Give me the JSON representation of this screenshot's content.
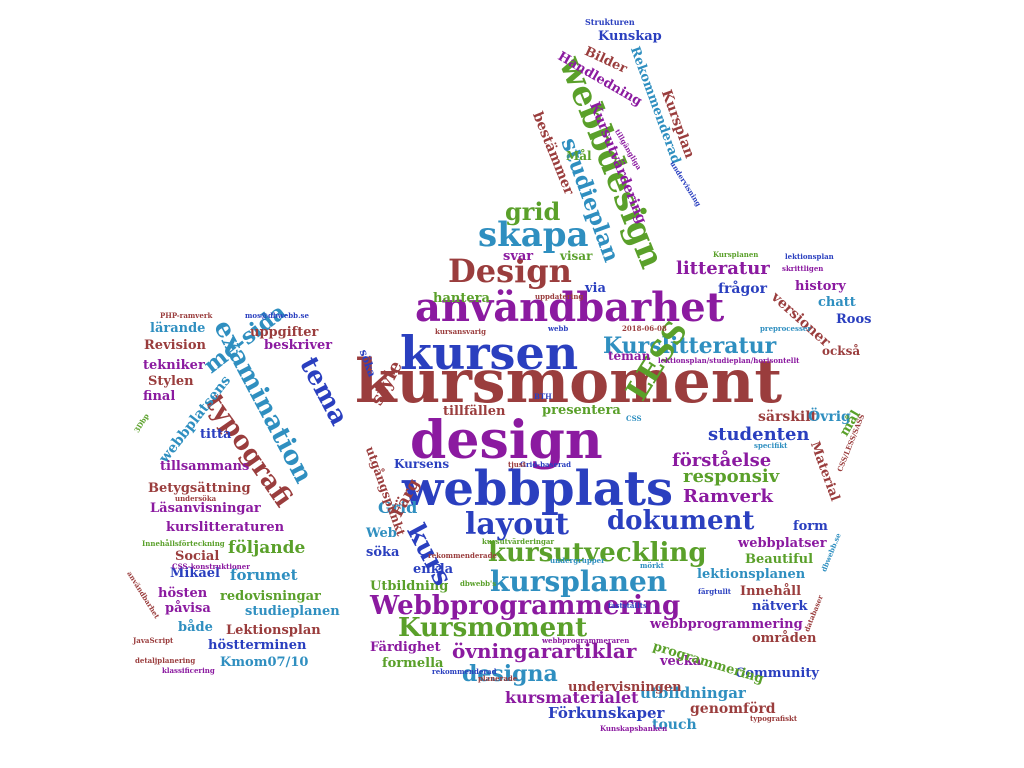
{
  "colors": {
    "blue": "#2a3fbf",
    "red": "#9a3d3d",
    "purple": "#8b1aa0",
    "green": "#5aa02a",
    "teal": "#2f8fc0"
  },
  "words": [
    "kursmoment",
    "design",
    "webbplats",
    "kursen",
    "användbarhet",
    "skapa",
    "Design",
    "grid",
    "layout",
    "dokument",
    "kursutveckling",
    "kursplanen",
    "Webbprogrammering",
    "Kursmoment",
    "övningarartiklar",
    "designa",
    "kursmaterialet",
    "Förkunskaper",
    "utbildningar",
    "genomförd",
    "touch",
    "Kurslitteratur",
    "studenten",
    "LESS",
    "förståelse",
    "responsiv",
    "Ramverk",
    "litteratur",
    "frågor",
    "versioner",
    "chatt",
    "Roos",
    "history",
    "också",
    "särskilt",
    "Övrig",
    "webbdesign",
    "studieplan",
    "Kursutvärdering",
    "Kunskap",
    "Rekommenderad",
    "Bilder",
    "Handledning",
    "Kursplan",
    "Mål",
    "bestämmer",
    "hantera",
    "via",
    "svar",
    "visar",
    "style",
    "tillfällen",
    "presentera",
    "teman",
    "söka",
    "Grid",
    "Web",
    "Färg",
    "söka",
    "enkla",
    "Utbildning",
    "Kursens",
    "kurs",
    "tema",
    "examination",
    "me-sida",
    "typografi",
    "webbplatsens",
    "uppgifter",
    "beskriver",
    "lärande",
    "Revision",
    "tekniker",
    "Stylen",
    "final",
    "titta",
    "tillsammans",
    "Betygsättning",
    "Läsanvisningar",
    "kurslitteraturen",
    "följande",
    "Social",
    "Mikael",
    "forumet",
    "hösten",
    "redovisningar",
    "påvisa",
    "studieplanen",
    "både",
    "Lektionsplan",
    "höstterminen",
    "Kmom07/10",
    "Färdighet",
    "formella",
    "vecka",
    "Community",
    "undervisningen",
    "programmering",
    "områden",
    "webbprogrammering",
    "nätverk",
    "Innehåll",
    "lektionsplanen",
    "webbplatser",
    "Beautiful",
    "form",
    "Material",
    "mål",
    "Strukturen",
    "PHP-ramverk",
    "mos@dbwebb.se",
    "Kursplanen",
    "lektionsplan",
    "skrittligen",
    "uppdatering",
    "kursansvarig",
    "webb",
    "2018-06-08",
    "lektionsplan/studieplan/horisontellt",
    "preprocesser",
    "undersöka",
    "Innehållsförteckning",
    "CSS-konstruktioner",
    "kursutvärderingar",
    "undergrupper",
    "rekommenderade",
    "mörkt",
    "färgtullt",
    "fastställts",
    "webbprogrammeraren",
    "planerade",
    "rekommenderad",
    "dbwebb's",
    "Kunskapsbanken",
    "typografiskt",
    "JavaScript",
    "detaljplanering",
    "klassificering",
    "dbwebb.se",
    "databaser",
    "användbarhet",
    "utgångspunkt",
    "3Dbp",
    "Grid-baserad",
    "tjust",
    "BTH",
    "CSS",
    "specifikt",
    "CSS/LESS/SASS",
    "tillgängliga",
    "undervisning",
    "litteratur"
  ]
}
